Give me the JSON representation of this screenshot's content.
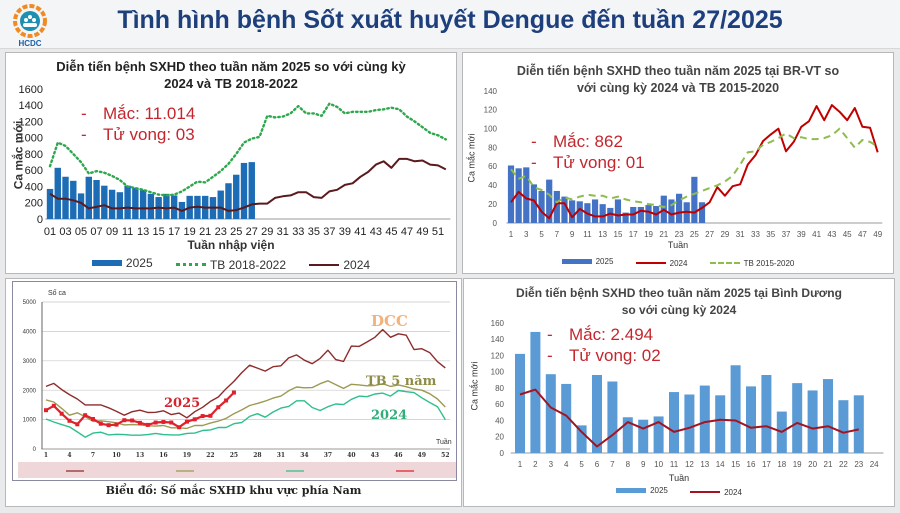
{
  "header": {
    "title": "Tình hình bệnh Sốt xuất huyết Dengue đến tuần 27/2025",
    "logo_text": "HCDC"
  },
  "panels": [
    {
      "annotation": {
        "cases": "Mắc: 11.014",
        "deaths": "Tử vong: 03",
        "dash": "-"
      }
    },
    {
      "annotation": {
        "cases": "Mắc: 862",
        "deaths": "Tử vong: 01",
        "dash": "-"
      }
    },
    {
      "caption": "Biểu đồ: Số mắc SXHD khu vực phía Nam"
    },
    {
      "annotation": {
        "cases": "Mắc: 2.494",
        "deaths": "Tử vong: 02",
        "dash": "-"
      }
    }
  ],
  "chart_data": [
    {
      "type": "bar+line",
      "title": "Diễn tiến bệnh SXHD theo tuần năm 2025 so với cùng kỳ 2024 và TB 2018-2022",
      "xlabel": "Tuần nhập viện",
      "ylabel": "Ca mắc mới",
      "xlim": [
        1,
        52
      ],
      "ylim": [
        0,
        1600
      ],
      "grid": false,
      "legend": "bottom",
      "yticks": [
        "0",
        "200",
        "400",
        "600",
        "800",
        "1000",
        "1200",
        "1400",
        "1600"
      ],
      "xticks": [
        "01",
        "03",
        "05",
        "07",
        "09",
        "11",
        "13",
        "15",
        "17",
        "19",
        "21",
        "23",
        "25",
        "27",
        "29",
        "31",
        "33",
        "35",
        "37",
        "39",
        "41",
        "43",
        "45",
        "47",
        "49",
        "51"
      ],
      "series": [
        {
          "name": "2025",
          "kind": "bar",
          "color": "#1c6cb6",
          "values": [
            370,
            630,
            520,
            470,
            315,
            520,
            480,
            410,
            360,
            330,
            410,
            385,
            360,
            310,
            270,
            310,
            290,
            210,
            285,
            285,
            285,
            270,
            350,
            440,
            545,
            690,
            700
          ]
        },
        {
          "name": "TB 2018-2022",
          "kind": "line",
          "style": "dotted",
          "color": "#2ea84c",
          "values": [
            650,
            940,
            900,
            800,
            700,
            560,
            590,
            570,
            530,
            480,
            400,
            380,
            360,
            330,
            300,
            290,
            300,
            340,
            400,
            460,
            450,
            520,
            590,
            680,
            800,
            940,
            990,
            1010,
            1270,
            1250,
            1260,
            1300,
            1390,
            1300,
            1300,
            1270,
            1420,
            1380,
            1300,
            1320,
            1320,
            1320,
            1340,
            1350,
            1370,
            1350,
            1260,
            1200,
            1130,
            1060,
            1030,
            980
          ]
        },
        {
          "name": "2024",
          "kind": "line",
          "style": "solid",
          "color": "#5a1a1e",
          "values": [
            310,
            250,
            250,
            230,
            200,
            130,
            150,
            170,
            130,
            130,
            140,
            130,
            130,
            130,
            140,
            130,
            140,
            100,
            140,
            150,
            140,
            140,
            140,
            100,
            110,
            140,
            180,
            190,
            190,
            260,
            280,
            290,
            330,
            330,
            270,
            260,
            340,
            360,
            420,
            440,
            520,
            580,
            670,
            710,
            630,
            740,
            740,
            710,
            720,
            670,
            660,
            610
          ]
        }
      ]
    },
    {
      "type": "bar+line",
      "title": "Diễn tiến bệnh SXHD theo tuần năm 2025 tại BR-VT so với cùng kỳ 2024 và TB 2015-2020",
      "xlabel": "Tuần",
      "ylabel": "Ca mắc mới",
      "xlim": [
        1,
        49
      ],
      "ylim": [
        0,
        140
      ],
      "grid": false,
      "legend": "bottom",
      "yticks": [
        "0",
        "20",
        "40",
        "60",
        "80",
        "100",
        "120",
        "140"
      ],
      "xticks": [
        "1",
        "3",
        "5",
        "7",
        "9",
        "11",
        "13",
        "15",
        "17",
        "19",
        "21",
        "23",
        "25",
        "27",
        "29",
        "31",
        "33",
        "35",
        "37",
        "39",
        "41",
        "43",
        "45",
        "47",
        "49"
      ],
      "series": [
        {
          "name": "2025",
          "kind": "bar",
          "color": "#4472c4",
          "values": [
            61,
            58,
            59,
            41,
            34,
            46,
            34,
            28,
            24,
            23,
            21,
            25,
            20,
            16,
            25,
            11,
            17,
            17,
            19,
            18,
            29,
            25,
            31,
            22,
            49,
            22
          ]
        },
        {
          "name": "2024",
          "kind": "line",
          "style": "solid",
          "color": "#c00000",
          "values": [
            22,
            33,
            26,
            24,
            12,
            5,
            21,
            21,
            6,
            15,
            10,
            7,
            7,
            10,
            8,
            9,
            9,
            13,
            12,
            9,
            14,
            9,
            11,
            12,
            11,
            16,
            22,
            38,
            29,
            39,
            41,
            62,
            72,
            87,
            94,
            100,
            76,
            86,
            102,
            108,
            124,
            109,
            125,
            118,
            109,
            122,
            102,
            101,
            75
          ]
        },
        {
          "name": "TB 2015-2020",
          "kind": "line",
          "style": "dashed",
          "color": "#8fbc4f",
          "values": [
            57,
            47,
            50,
            38,
            35,
            30,
            22,
            27,
            25,
            28,
            30,
            29,
            29,
            26,
            28,
            25,
            23,
            22,
            20,
            19,
            17,
            19,
            24,
            28,
            31,
            34,
            37,
            40,
            44,
            50,
            62,
            75,
            76,
            83,
            86,
            90,
            95,
            90,
            91,
            89,
            89,
            90,
            93,
            100,
            90,
            80,
            88,
            86,
            81
          ]
        }
      ]
    },
    {
      "type": "line",
      "title": "",
      "xlabel": "Tuần",
      "ylabel": "Số ca",
      "xlim": [
        1,
        52
      ],
      "ylim": [
        0,
        5000
      ],
      "grid": true,
      "legend": "bottom",
      "yticks": [
        "0",
        "1000",
        "2000",
        "3000",
        "4000",
        "5000"
      ],
      "xticks": [
        "1",
        "4",
        "7",
        "10",
        "13",
        "16",
        "19",
        "22",
        "25",
        "28",
        "31",
        "34",
        "37",
        "40",
        "43",
        "46",
        "49",
        "52"
      ],
      "series": [
        {
          "name": "DCC",
          "kind": "line",
          "style": "solid",
          "color": "#8e2b2b",
          "label_color": "#f2b27a",
          "values": [
            2130,
            2230,
            2020,
            1850,
            1700,
            1500,
            1500,
            1500,
            1400,
            1280,
            1150,
            1270,
            1320,
            1240,
            1250,
            1300,
            1170,
            1220,
            1060,
            1270,
            1420,
            1620,
            1770,
            2050,
            2300,
            2600,
            2850,
            2750,
            2650,
            2800,
            2830,
            3100,
            3200,
            3020,
            2900,
            3080,
            3360,
            3040,
            2980,
            3500,
            3490,
            3640,
            3800,
            4060,
            3800,
            3920,
            3870,
            3380,
            3410,
            3280,
            2970,
            2760
          ]
        },
        {
          "name": "TB 5 năm",
          "kind": "line",
          "style": "solid",
          "color": "#9c9a52",
          "label_color": "#8f8d45",
          "values": [
            1670,
            1600,
            1380,
            1150,
            1230,
            1100,
            940,
            960,
            930,
            890,
            820,
            830,
            820,
            790,
            780,
            800,
            720,
            720,
            700,
            800,
            800,
            880,
            950,
            1040,
            1200,
            1330,
            1480,
            1550,
            1630,
            1730,
            1800,
            1980,
            2110,
            2080,
            2090,
            2220,
            2320,
            2190,
            2060,
            2200,
            2180,
            2150,
            2160,
            2220,
            2130,
            2180,
            2120,
            2040,
            2000,
            1880,
            1700,
            1430
          ]
        },
        {
          "name": "2024",
          "kind": "line",
          "style": "solid",
          "color": "#2fbf8c",
          "label_color": "#2fae7a",
          "values": [
            1020,
            920,
            830,
            750,
            580,
            400,
            540,
            570,
            480,
            500,
            490,
            470,
            470,
            490,
            530,
            490,
            480,
            480,
            530,
            540,
            630,
            650,
            730,
            730,
            860,
            900,
            1110,
            1200,
            1080,
            1260,
            1390,
            1450,
            1640,
            1640,
            1410,
            1310,
            1440,
            1530,
            1510,
            1690,
            1800,
            1780,
            1870,
            1900,
            1800,
            1990,
            1950,
            1920,
            1740,
            1580,
            1440,
            1000
          ]
        },
        {
          "name": "2025",
          "kind": "line",
          "style": "markers",
          "color": "#e0202a",
          "label_color": "#d4232b",
          "values": [
            1320,
            1470,
            1200,
            960,
            840,
            1150,
            1020,
            860,
            810,
            830,
            980,
            970,
            890,
            820,
            900,
            920,
            900,
            740,
            930,
            1010,
            1120,
            1130,
            1420,
            1650,
            1920
          ]
        }
      ]
    },
    {
      "type": "bar+line",
      "title": "Diễn tiến bệnh SXHD theo tuần năm 2025 tại Bình Dương so với cùng kỳ 2024",
      "xlabel": "Tuần",
      "ylabel": "Ca mắc mới",
      "xlim": [
        1,
        24
      ],
      "ylim": [
        0,
        160
      ],
      "grid": false,
      "legend": "bottom",
      "yticks": [
        "0",
        "20",
        "40",
        "60",
        "80",
        "100",
        "120",
        "140",
        "160"
      ],
      "xticks": [
        "1",
        "2",
        "3",
        "4",
        "5",
        "6",
        "7",
        "8",
        "9",
        "10",
        "11",
        "12",
        "13",
        "14",
        "15",
        "16",
        "17",
        "18",
        "19",
        "20",
        "21",
        "22",
        "23",
        "24"
      ],
      "series": [
        {
          "name": "2025",
          "kind": "bar",
          "color": "#5b9bd5",
          "values": [
            122,
            149,
            97,
            85,
            34,
            96,
            88,
            44,
            41,
            45,
            75,
            72,
            83,
            71,
            108,
            82,
            96,
            51,
            86,
            77,
            91,
            65,
            71
          ]
        },
        {
          "name": "2024",
          "kind": "line",
          "style": "solid",
          "color": "#a31422",
          "values": [
            72,
            78,
            56,
            46,
            26,
            8,
            22,
            38,
            30,
            38,
            26,
            31,
            38,
            41,
            40,
            31,
            33,
            26,
            37,
            30,
            33,
            25,
            29
          ]
        }
      ]
    }
  ]
}
